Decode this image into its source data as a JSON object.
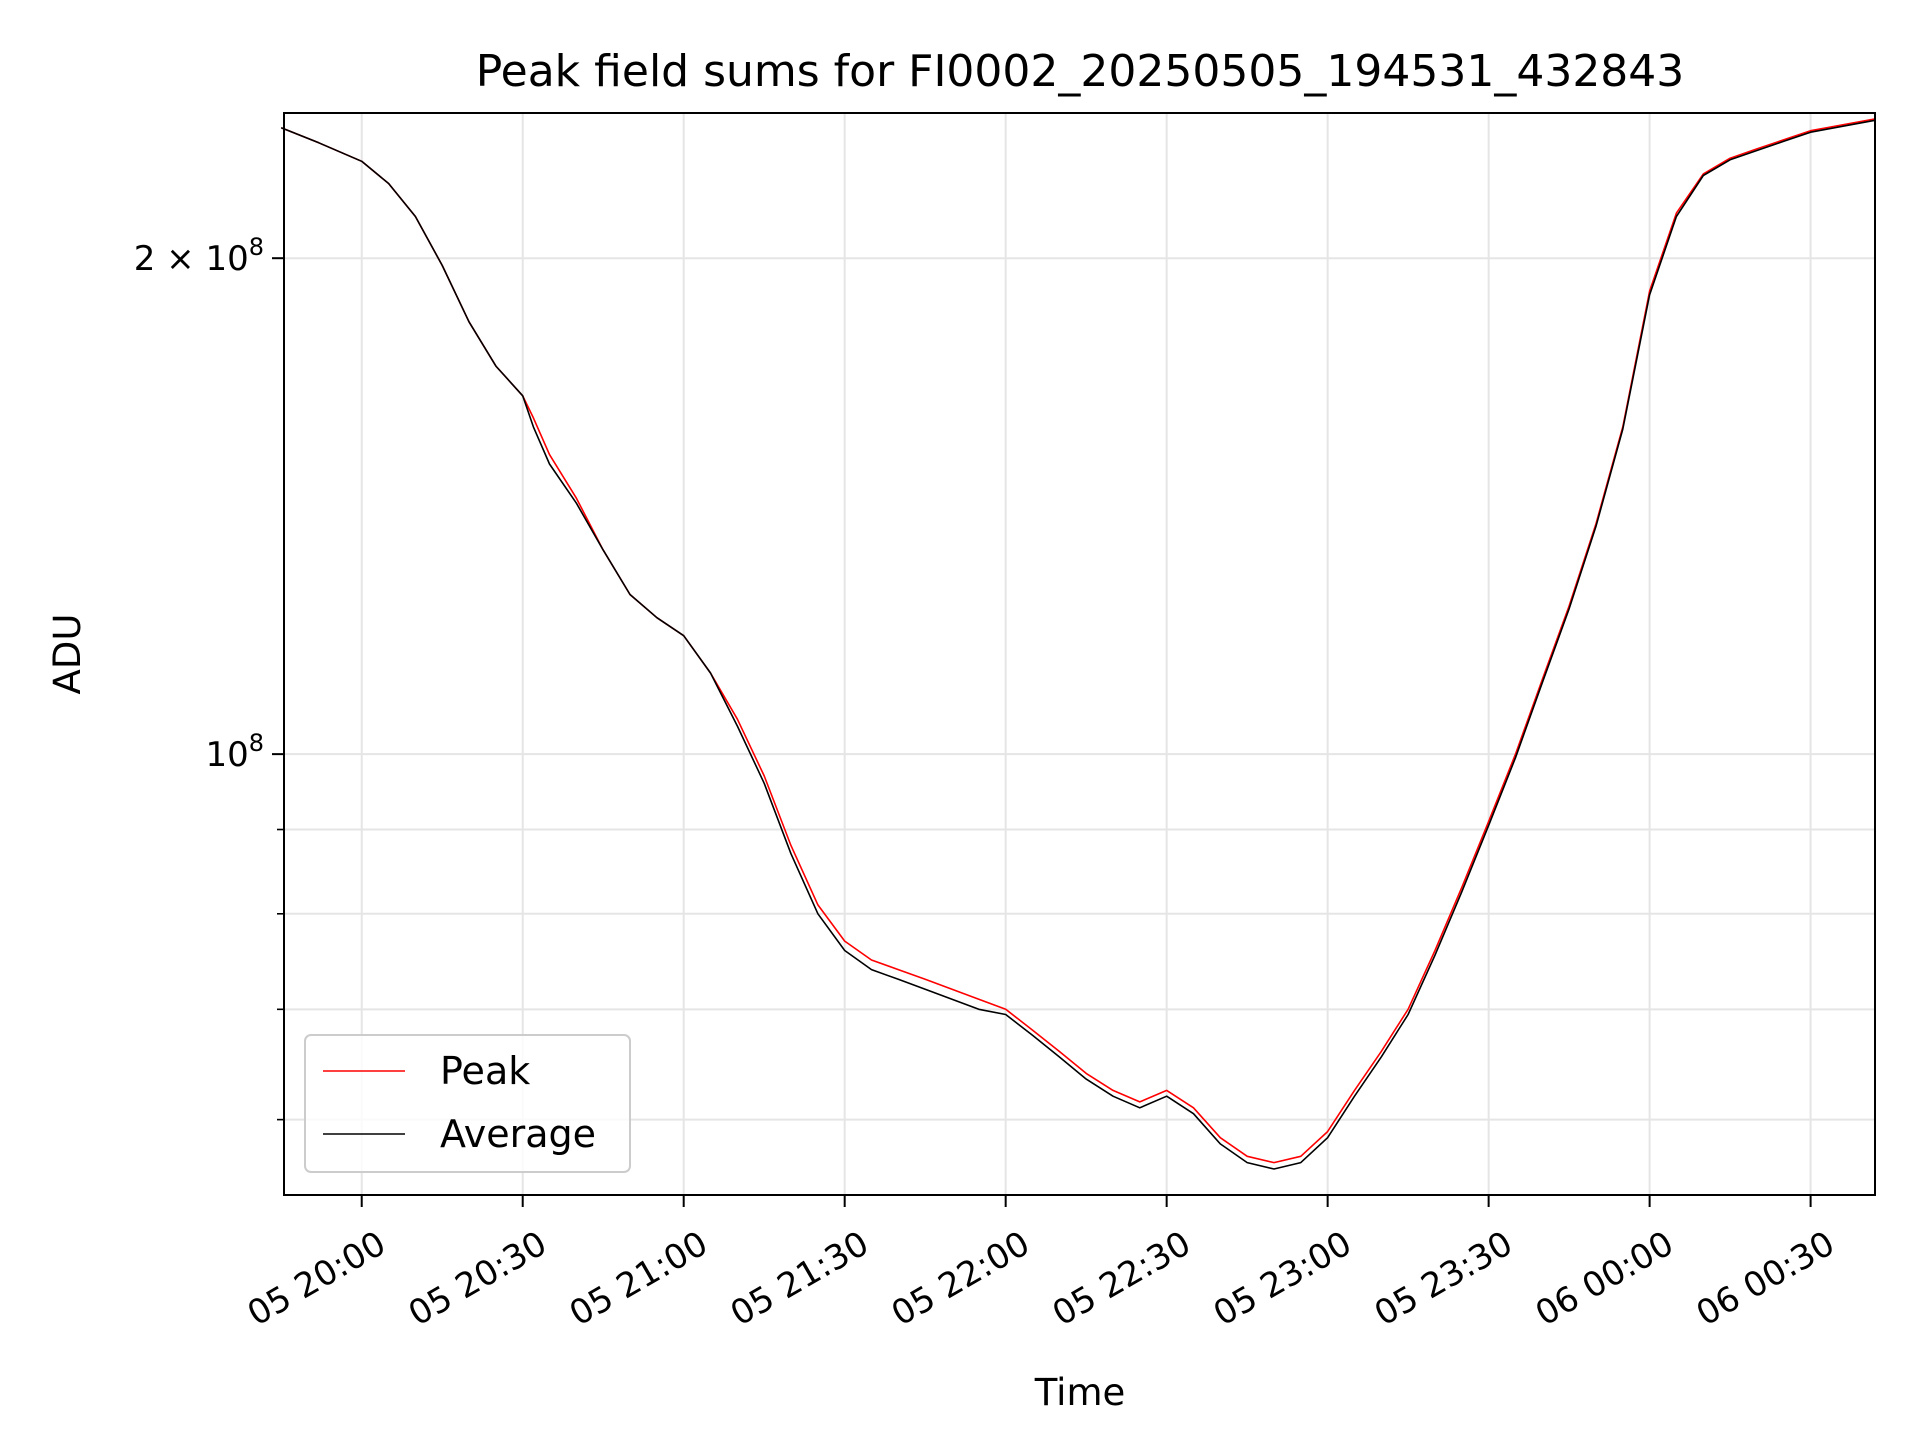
{
  "chart_data": {
    "type": "line",
    "title": "Peak field sums for FI0002_20250505_194531_432843",
    "xlabel": "Time",
    "ylabel": "ADU",
    "y_scale": "log",
    "ylim": [
      54000000,
      245000000
    ],
    "xlim": [
      "05 19:45:31",
      "06 00:42:00"
    ],
    "grid": true,
    "legend_position": "lower-left",
    "x_ticks": [
      "05 20:00",
      "05 20:30",
      "05 21:00",
      "05 21:30",
      "05 22:00",
      "05 22:30",
      "05 23:00",
      "05 23:30",
      "06 00:00",
      "06 00:30"
    ],
    "y_major_ticks": [
      {
        "value": 200000000,
        "label": "2 × 10^8",
        "mantissa": "2",
        "exp": "8"
      },
      {
        "value": 100000000,
        "label": "10^8",
        "mantissa": "",
        "exp": "8"
      }
    ],
    "y_minor_ticks": [
      60000000,
      70000000,
      80000000,
      90000000
    ],
    "x": [
      "05 19:45",
      "05 19:52",
      "05 20:00",
      "05 20:05",
      "05 20:10",
      "05 20:15",
      "05 20:20",
      "05 20:25",
      "05 20:30",
      "05 20:32",
      "05 20:35",
      "05 20:40",
      "05 20:45",
      "05 20:50",
      "05 20:55",
      "05 21:00",
      "05 21:05",
      "05 21:10",
      "05 21:15",
      "05 21:20",
      "05 21:25",
      "05 21:30",
      "05 21:35",
      "05 21:40",
      "05 21:45",
      "05 21:50",
      "05 21:55",
      "05 22:00",
      "05 22:05",
      "05 22:10",
      "05 22:15",
      "05 22:20",
      "05 22:25",
      "05 22:30",
      "05 22:35",
      "05 22:40",
      "05 22:45",
      "05 22:50",
      "05 22:55",
      "05 23:00",
      "05 23:05",
      "05 23:10",
      "05 23:15",
      "05 23:20",
      "05 23:25",
      "05 23:30",
      "05 23:35",
      "05 23:40",
      "05 23:45",
      "05 23:50",
      "05 23:55",
      "06 00:00",
      "06 00:05",
      "06 00:10",
      "06 00:15",
      "06 00:20",
      "06 00:25",
      "06 00:30",
      "06 00:42"
    ],
    "series": [
      {
        "name": "Peak",
        "color": "#ff0000",
        "values": [
          240000000,
          235000000,
          229000000,
          222000000,
          212000000,
          198000000,
          183000000,
          172000000,
          165000000,
          160000000,
          152000000,
          143000000,
          133000000,
          125000000,
          121000000,
          118000000,
          112000000,
          105000000,
          97000000,
          88000000,
          81000000,
          77000000,
          75000000,
          74000000,
          73000000,
          72000000,
          71000000,
          70000000,
          68000000,
          66000000,
          64000000,
          62500000,
          61500000,
          62500000,
          61000000,
          58500000,
          57000000,
          56500000,
          57000000,
          59000000,
          62500000,
          66000000,
          70000000,
          76000000,
          83000000,
          91000000,
          100000000,
          111000000,
          123000000,
          138000000,
          158000000,
          191000000,
          213000000,
          225000000,
          230000000,
          233000000,
          236000000,
          239000000,
          243000000
        ]
      },
      {
        "name": "Average",
        "color": "#000000",
        "values": [
          240000000,
          235000000,
          229000000,
          222000000,
          212000000,
          198000000,
          183000000,
          172000000,
          165000000,
          158000000,
          150000000,
          142000000,
          133000000,
          125000000,
          121000000,
          118000000,
          112000000,
          104000000,
          96000000,
          87000000,
          80000000,
          76000000,
          74000000,
          73000000,
          72000000,
          71000000,
          70000000,
          69500000,
          67500000,
          65500000,
          63500000,
          62000000,
          61000000,
          62000000,
          60500000,
          58000000,
          56500000,
          56000000,
          56500000,
          58500000,
          62000000,
          65500000,
          69500000,
          75500000,
          82500000,
          90500000,
          99500000,
          110500000,
          122500000,
          137500000,
          157500000,
          190000000,
          212000000,
          224500000,
          229500000,
          232500000,
          235500000,
          238500000,
          242500000
        ]
      }
    ]
  }
}
